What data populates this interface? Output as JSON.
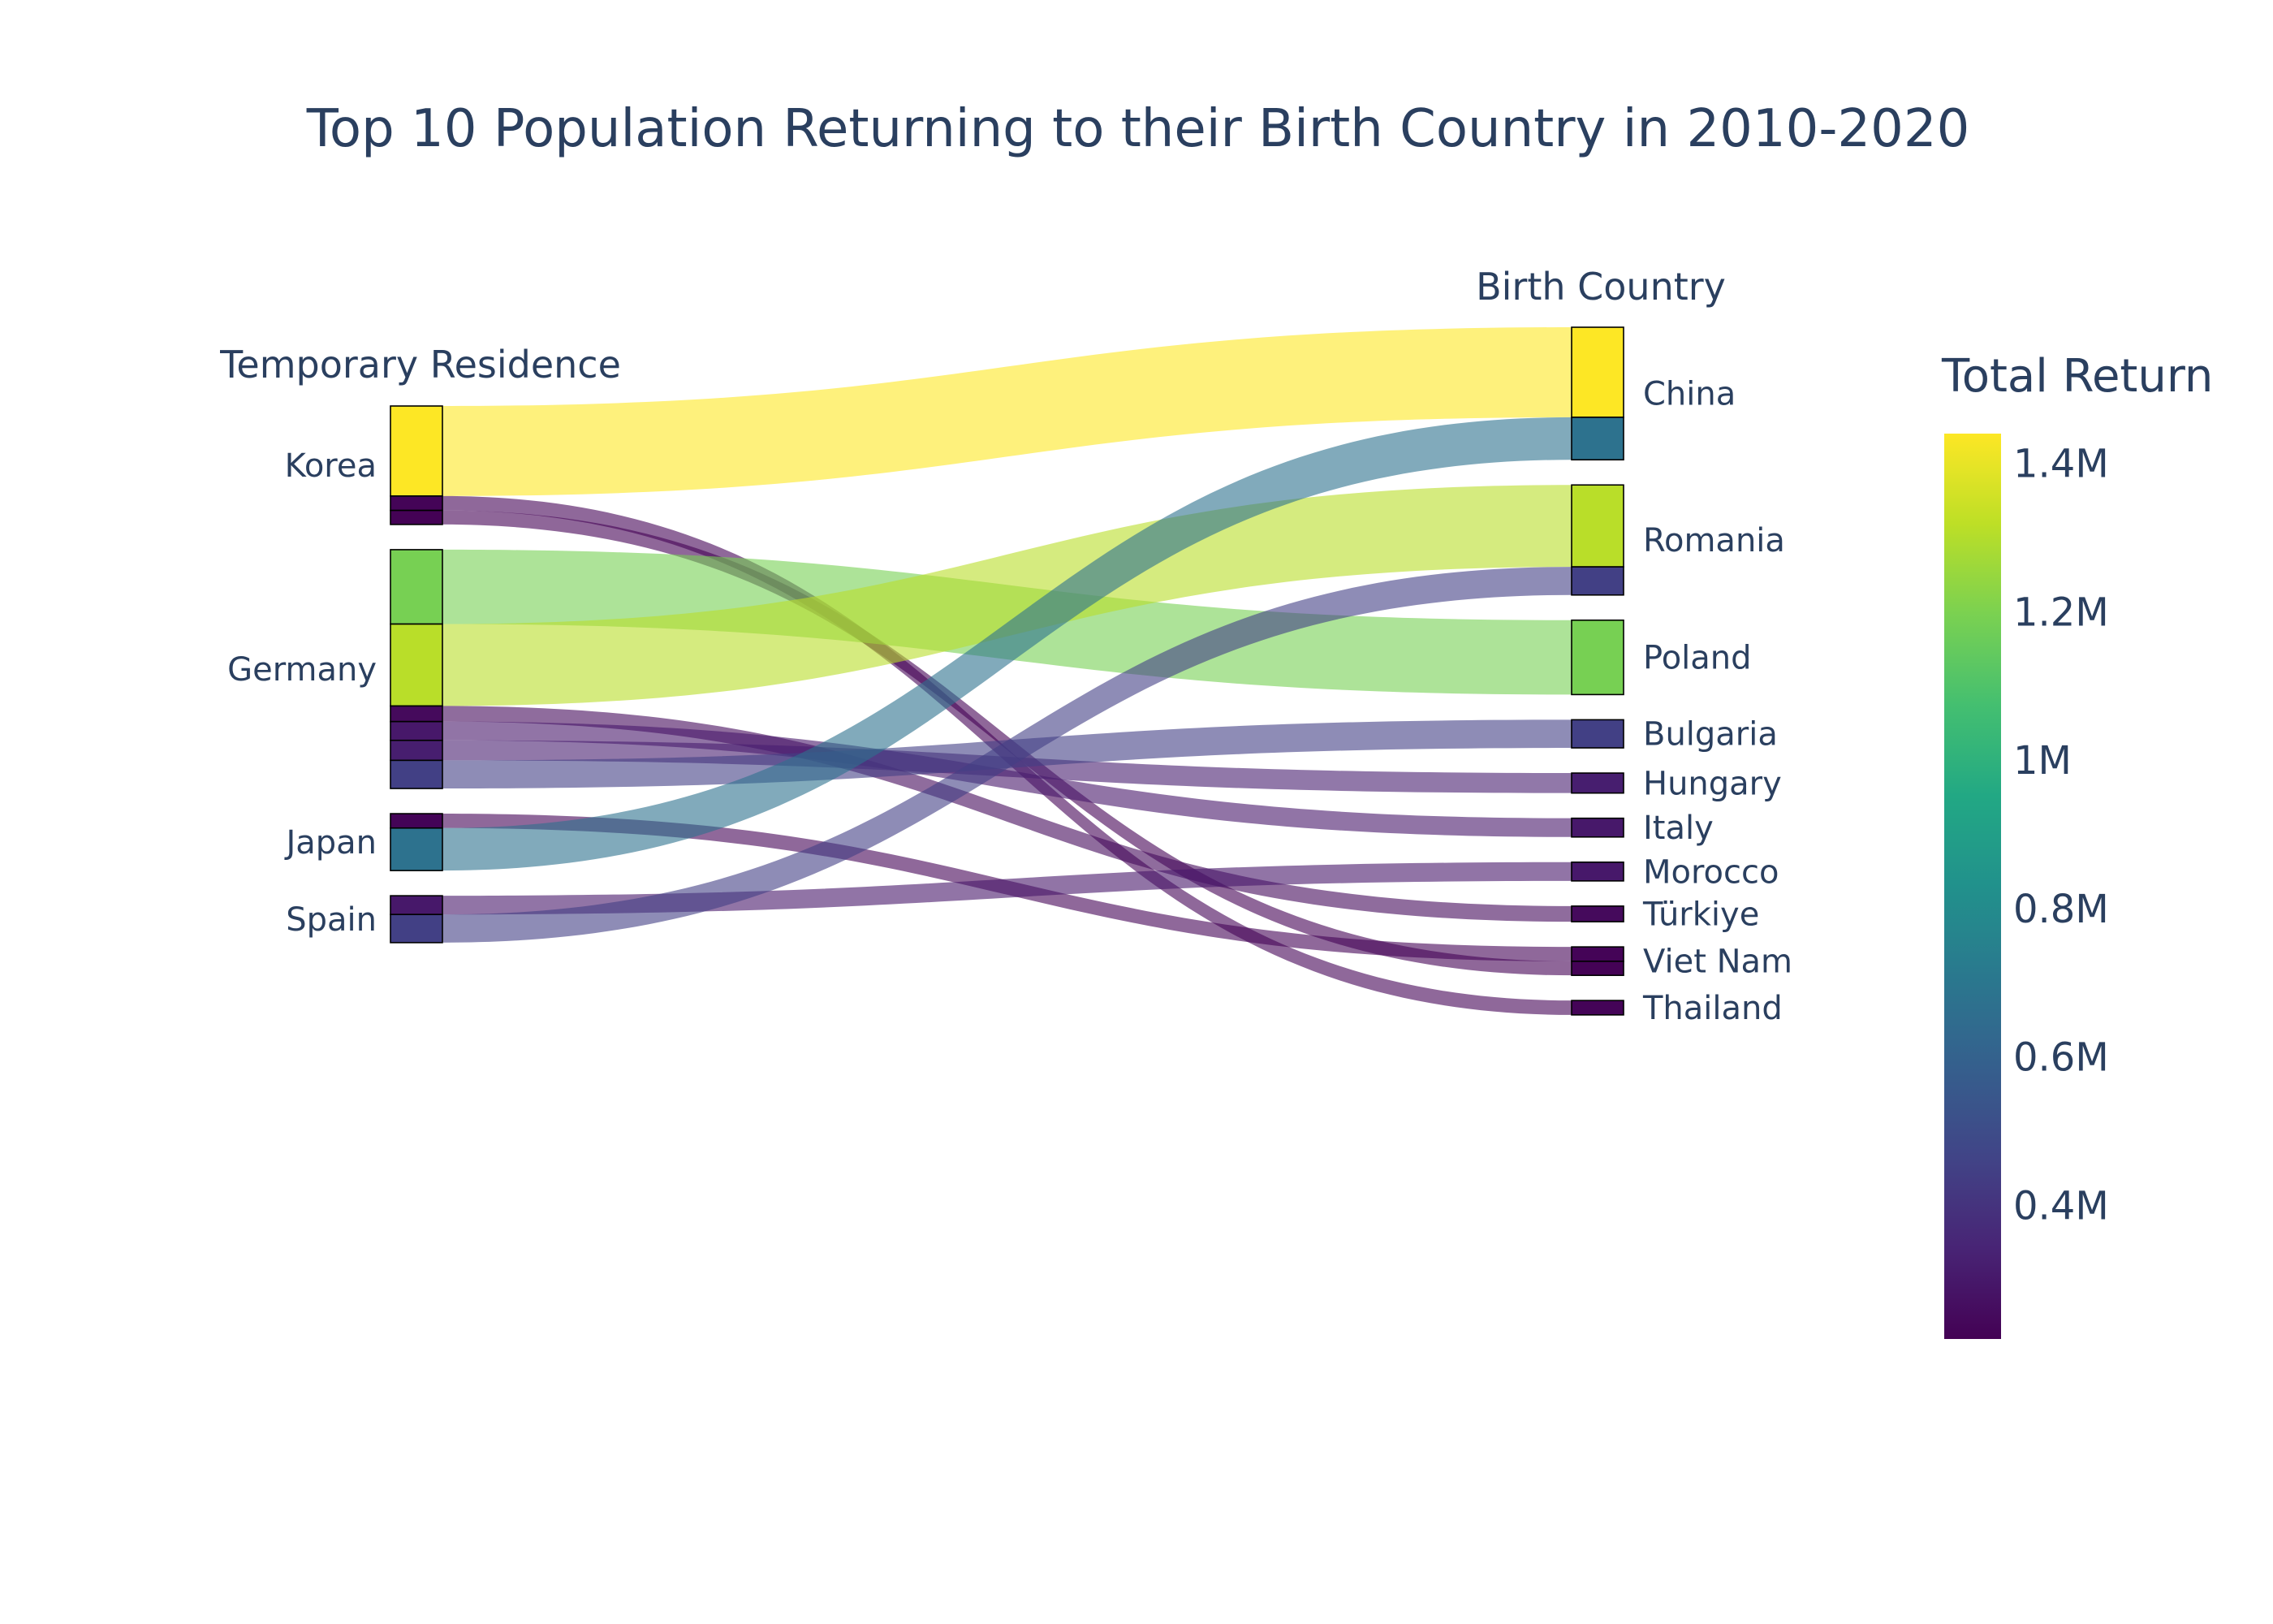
{
  "chart_data": {
    "type": "sankey",
    "title": "Top 10 Population Returning to their Birth Country in 2010-2020",
    "left_header": "Temporary Residence",
    "right_header": "Birth Country",
    "colorbar": {
      "title": "Total Return",
      "range": [
        220000,
        1440000
      ],
      "ticks": [
        {
          "value": 400000,
          "label": "0.4M"
        },
        {
          "value": 600000,
          "label": "0.6M"
        },
        {
          "value": 800000,
          "label": "0.8M"
        },
        {
          "value": 1000000,
          "label": "1M"
        },
        {
          "value": 1200000,
          "label": "1.2M"
        },
        {
          "value": 1400000,
          "label": "1.4M"
        }
      ]
    },
    "colorscale": "Viridis",
    "sources": [
      {
        "name": "Korea",
        "flows": [
          {
            "target": "China",
            "value": 1440000
          },
          {
            "target": "Thailand",
            "value": 230000
          },
          {
            "target": "Viet Nam",
            "value": 225000
          }
        ]
      },
      {
        "name": "Germany",
        "flows": [
          {
            "target": "Poland",
            "value": 1190000
          },
          {
            "target": "Romania",
            "value": 1310000
          },
          {
            "target": "Türkiye",
            "value": 250000
          },
          {
            "target": "Italy",
            "value": 300000
          },
          {
            "target": "Hungary",
            "value": 320000
          },
          {
            "target": "Bulgaria",
            "value": 450000
          }
        ]
      },
      {
        "name": "Japan",
        "flows": [
          {
            "target": "Viet Nam",
            "value": 230000
          },
          {
            "target": "China",
            "value": 680000
          }
        ]
      },
      {
        "name": "Spain",
        "flows": [
          {
            "target": "Morocco",
            "value": 300000
          },
          {
            "target": "Romania",
            "value": 450000
          }
        ]
      }
    ],
    "targets": [
      {
        "name": "China",
        "order": [
          "Korea",
          "Japan"
        ]
      },
      {
        "name": "Romania",
        "order": [
          "Germany",
          "Spain"
        ]
      },
      {
        "name": "Poland",
        "order": [
          "Germany"
        ]
      },
      {
        "name": "Bulgaria",
        "order": [
          "Germany"
        ]
      },
      {
        "name": "Hungary",
        "order": [
          "Germany"
        ]
      },
      {
        "name": "Italy",
        "order": [
          "Germany"
        ]
      },
      {
        "name": "Morocco",
        "order": [
          "Spain"
        ]
      },
      {
        "name": "Türkiye",
        "order": [
          "Germany"
        ]
      },
      {
        "name": "Viet Nam",
        "order": [
          "Japan",
          "Korea"
        ]
      },
      {
        "name": "Thailand",
        "order": [
          "Korea"
        ]
      }
    ]
  }
}
